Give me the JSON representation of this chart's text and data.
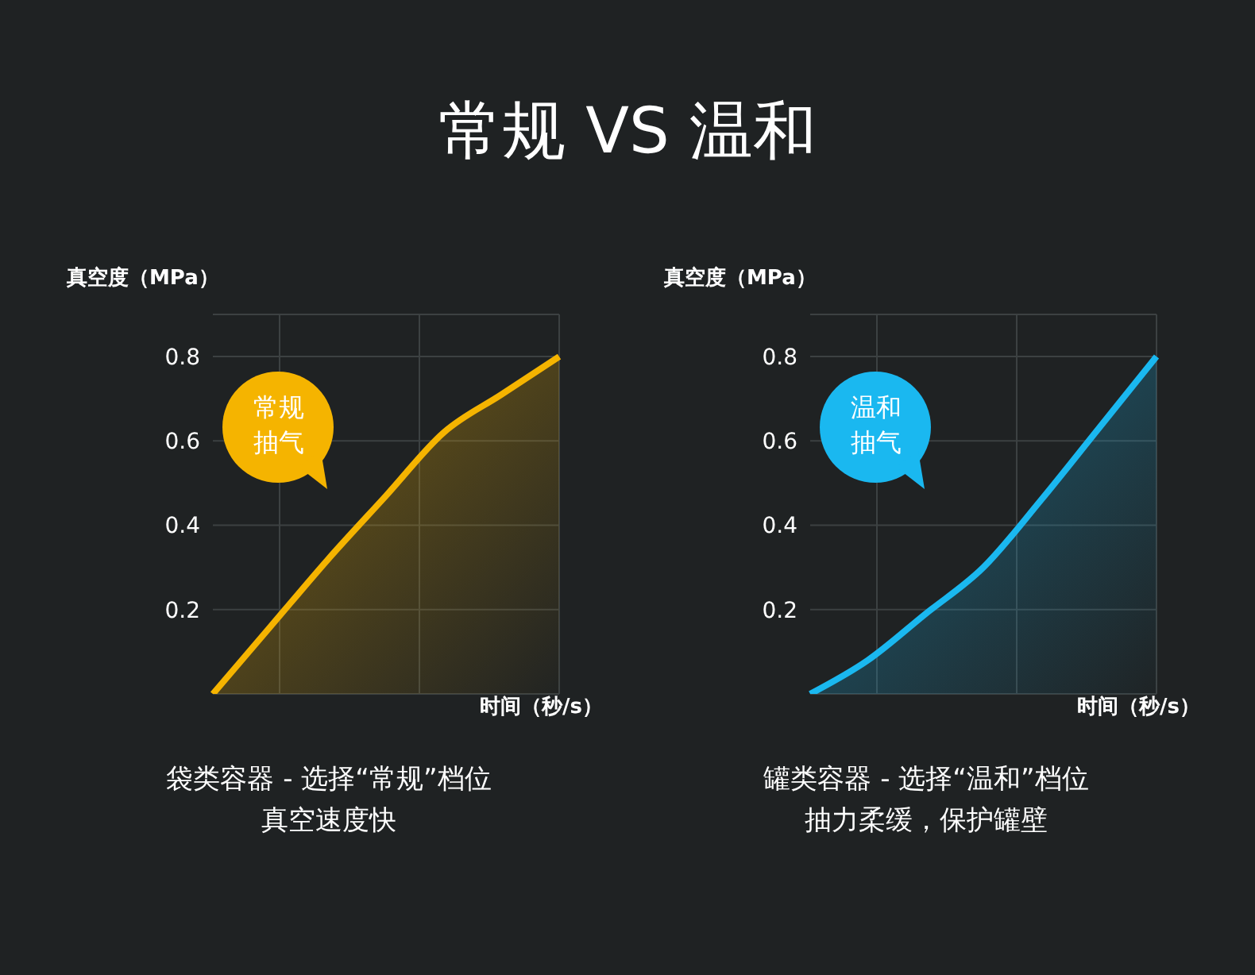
{
  "chart_data": [
    {
      "type": "area",
      "title": "常规 VS 温和",
      "ylabel": "真空度（MPa）",
      "xlabel": "时间（秒/s）",
      "categories": [
        null,
        null,
        null,
        null,
        null,
        null,
        null
      ],
      "series": [
        {
          "color": "#f5b400",
          "values": [
            0,
            0.16,
            0.32,
            0.47,
            0.62,
            0.71,
            0.8
          ]
        }
      ],
      "ylim": [
        0,
        0.9
      ],
      "yticks": [
        0.2,
        0.4,
        0.6,
        0.8
      ],
      "grid": true,
      "annotations": [
        "常规抽气",
        "袋类容器 - 选择“常规”档位",
        "真空速度快"
      ]
    },
    {
      "type": "area",
      "ylabel": "真空度（MPa）",
      "xlabel": "时间（秒/s）",
      "categories": [
        null,
        null,
        null,
        null,
        null,
        null,
        null
      ],
      "series": [
        {
          "color": "#1ab8f0",
          "values": [
            0,
            0.08,
            0.19,
            0.3,
            0.46,
            0.63,
            0.8
          ]
        }
      ],
      "ylim": [
        0,
        0.9
      ],
      "yticks": [
        0.2,
        0.4,
        0.6,
        0.8
      ],
      "grid": true,
      "annotations": [
        "温和抽气",
        "罐类容器 - 选择“温和”档位",
        "抽力柔缓，保护罐壁"
      ]
    }
  ]
}
